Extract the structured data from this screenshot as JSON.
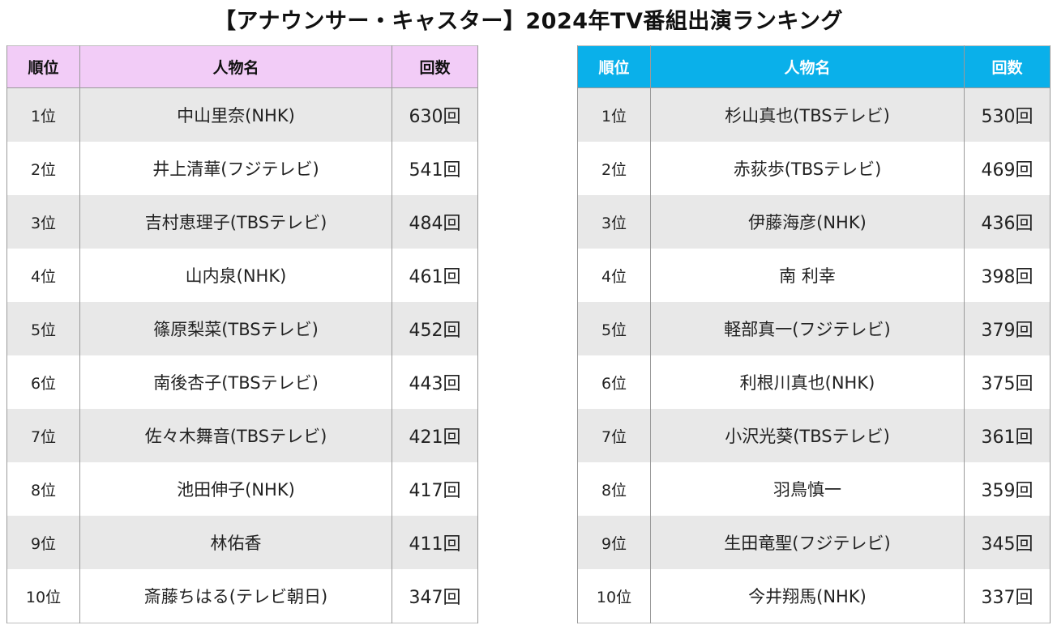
{
  "title": "【アナウンサー・キャスター】2024年TV番組出演ランキング",
  "colors": {
    "left_header_bg": "#f2ccf7",
    "right_header_bg": "#0ab0ea",
    "stripe_bg": "#e8e8e8"
  },
  "left_table": {
    "headers": [
      "順位",
      "人物名",
      "回数"
    ],
    "rows": [
      [
        "1位",
        "中山里奈(NHK)",
        "630回"
      ],
      [
        "2位",
        "井上清華(フジテレビ)",
        "541回"
      ],
      [
        "3位",
        "吉村恵理子(TBSテレビ)",
        "484回"
      ],
      [
        "4位",
        "山内泉(NHK)",
        "461回"
      ],
      [
        "5位",
        "篠原梨菜(TBSテレビ)",
        "452回"
      ],
      [
        "6位",
        "南後杏子(TBSテレビ)",
        "443回"
      ],
      [
        "7位",
        "佐々木舞音(TBSテレビ)",
        "421回"
      ],
      [
        "8位",
        "池田伸子(NHK)",
        "417回"
      ],
      [
        "9位",
        "林佑香",
        "411回"
      ],
      [
        "10位",
        "斎藤ちはる(テレビ朝日)",
        "347回"
      ]
    ]
  },
  "right_table": {
    "headers": [
      "順位",
      "人物名",
      "回数"
    ],
    "rows": [
      [
        "1位",
        "杉山真也(TBSテレビ)",
        "530回"
      ],
      [
        "2位",
        "赤荻歩(TBSテレビ)",
        "469回"
      ],
      [
        "3位",
        "伊藤海彦(NHK)",
        "436回"
      ],
      [
        "4位",
        "南 利幸",
        "398回"
      ],
      [
        "5位",
        "軽部真一(フジテレビ)",
        "379回"
      ],
      [
        "6位",
        "利根川真也(NHK)",
        "375回"
      ],
      [
        "7位",
        "小沢光葵(TBSテレビ)",
        "361回"
      ],
      [
        "8位",
        "羽鳥慎一",
        "359回"
      ],
      [
        "9位",
        "生田竜聖(フジテレビ)",
        "345回"
      ],
      [
        "10位",
        "今井翔馬(NHK)",
        "337回"
      ]
    ]
  }
}
